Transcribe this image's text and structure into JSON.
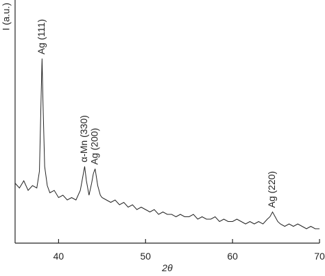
{
  "chart_data": {
    "type": "line",
    "x_label": "2θ",
    "y_label": "I (a.u.)",
    "xlim": [
      35,
      70
    ],
    "ylim": [
      0,
      100
    ],
    "xticks": [
      40,
      50,
      60,
      70
    ],
    "color": "#222222",
    "x": [
      35,
      35.5,
      36,
      36.5,
      37,
      37.5,
      37.8,
      38.0,
      38.1,
      38.2,
      38.4,
      38.7,
      39,
      39.5,
      40,
      40.5,
      41,
      41.5,
      42,
      42.5,
      42.8,
      43,
      43.2,
      43.5,
      43.8,
      44.0,
      44.2,
      44.5,
      44.8,
      45,
      45.5,
      46,
      46.5,
      47,
      47.5,
      48,
      48.5,
      49,
      49.5,
      50,
      50.5,
      51,
      51.5,
      52,
      52.5,
      53,
      53.5,
      54,
      54.5,
      55,
      55.5,
      56,
      56.5,
      57,
      57.5,
      58,
      58.5,
      59,
      59.5,
      60,
      60.5,
      61,
      61.5,
      62,
      62.5,
      63,
      63.5,
      64,
      64.3,
      64.6,
      64.9,
      65.2,
      65.5,
      66,
      66.5,
      67,
      67.5,
      68,
      68.5,
      69,
      69.5,
      70
    ],
    "values": [
      25,
      23,
      26,
      22,
      24,
      23,
      30,
      62,
      77,
      60,
      32,
      24,
      21,
      22,
      19,
      20,
      18,
      19,
      18,
      22,
      28,
      32,
      26,
      20,
      25,
      29,
      31,
      24,
      20,
      19,
      18,
      17,
      18,
      16,
      17,
      15,
      16,
      14,
      15,
      14,
      13,
      14,
      12,
      13,
      12,
      12,
      11,
      12,
      11,
      11,
      12,
      10,
      11,
      10,
      10,
      11,
      9,
      10,
      9,
      9,
      10,
      9,
      8,
      9,
      8,
      9,
      8,
      10,
      11,
      13,
      11,
      9,
      8,
      7,
      8,
      7,
      8,
      7,
      6,
      7,
      6,
      6
    ],
    "annotations": [
      {
        "text": "Ag (111)",
        "x": 38.1
      },
      {
        "text": "α-Mn (330)",
        "x": 43
      },
      {
        "text": "Ag (200)",
        "x": 44.2
      },
      {
        "text": "Ag (220)",
        "x": 64.6
      }
    ]
  }
}
